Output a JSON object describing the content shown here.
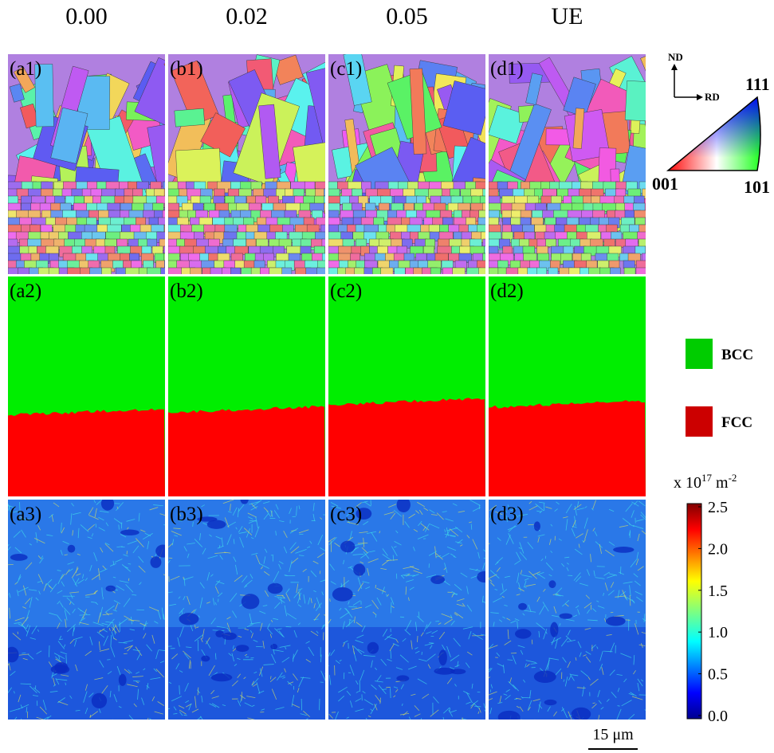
{
  "columns": [
    "0.00",
    "0.02",
    "0.05",
    "UE"
  ],
  "panels": [
    [
      "(a1)",
      "(b1)",
      "(c1)",
      "(d1)"
    ],
    [
      "(a2)",
      "(b2)",
      "(c2)",
      "(d2)"
    ],
    [
      "(a3)",
      "(b3)",
      "(c3)",
      "(d3)"
    ]
  ],
  "ipf_key": {
    "nd": "ND",
    "rd": "RD",
    "corner_111": "111",
    "corner_001": "001",
    "corner_101": "101"
  },
  "phase_legend": [
    "BCC",
    "FCC"
  ],
  "colorbar": {
    "title": {
      "prefix": "x 10",
      "exp1": "17",
      "unit": " m",
      "exp2": "-2"
    },
    "ticks": [
      "2.5",
      "2.0",
      "1.5",
      "1.0",
      "0.5",
      "0.0"
    ]
  },
  "scale_bar": "15 μm"
}
